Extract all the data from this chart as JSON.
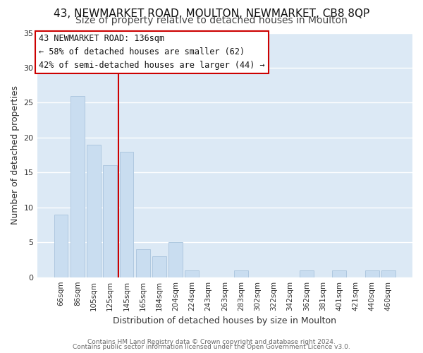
{
  "title": "43, NEWMARKET ROAD, MOULTON, NEWMARKET, CB8 8QP",
  "subtitle": "Size of property relative to detached houses in Moulton",
  "xlabel": "Distribution of detached houses by size in Moulton",
  "ylabel": "Number of detached properties",
  "bar_labels": [
    "66sqm",
    "86sqm",
    "105sqm",
    "125sqm",
    "145sqm",
    "165sqm",
    "184sqm",
    "204sqm",
    "224sqm",
    "243sqm",
    "263sqm",
    "283sqm",
    "302sqm",
    "322sqm",
    "342sqm",
    "362sqm",
    "381sqm",
    "401sqm",
    "421sqm",
    "440sqm",
    "460sqm"
  ],
  "bar_values": [
    9,
    26,
    19,
    16,
    18,
    4,
    3,
    5,
    1,
    0,
    0,
    1,
    0,
    0,
    0,
    1,
    0,
    1,
    0,
    1,
    1
  ],
  "bar_color": "#c9ddf0",
  "bar_edge_color": "#aec8e0",
  "vline_x": 3.5,
  "vline_color": "#cc0000",
  "annotation_title": "43 NEWMARKET ROAD: 136sqm",
  "annotation_line1": "← 58% of detached houses are smaller (62)",
  "annotation_line2": "42% of semi-detached houses are larger (44) →",
  "annotation_box_edge": "#cc0000",
  "ylim": [
    0,
    35
  ],
  "yticks": [
    0,
    5,
    10,
    15,
    20,
    25,
    30,
    35
  ],
  "footer1": "Contains HM Land Registry data © Crown copyright and database right 2024.",
  "footer2": "Contains public sector information licensed under the Open Government Licence v3.0.",
  "plot_bg_color": "#dce9f5",
  "fig_bg_color": "#ffffff",
  "grid_color": "#ffffff",
  "title_fontsize": 11,
  "subtitle_fontsize": 10,
  "tick_fontsize": 7.5,
  "ylabel_fontsize": 9,
  "xlabel_fontsize": 9,
  "annotation_fontsize": 8.5,
  "footer_fontsize": 6.5
}
